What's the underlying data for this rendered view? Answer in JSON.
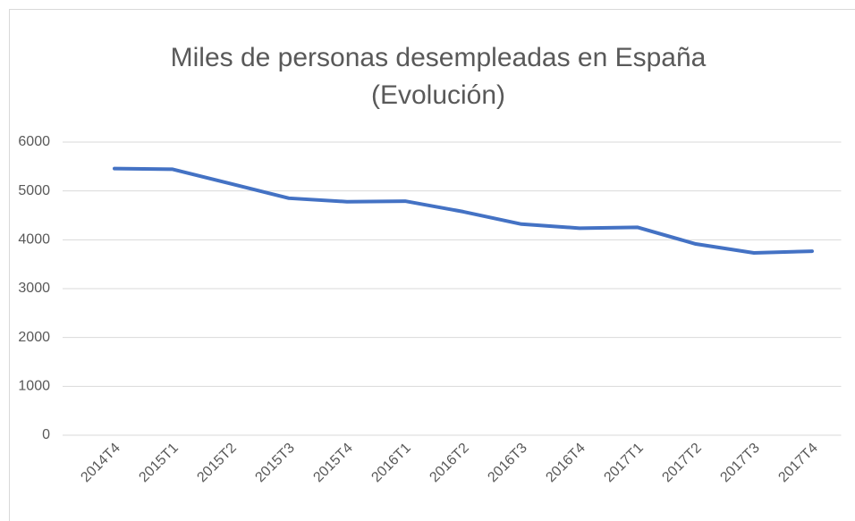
{
  "chart_data": {
    "type": "line",
    "title": [
      "Miles de personas desempleadas en España",
      "(Evolución)"
    ],
    "categories": [
      "2014T4",
      "2015T1",
      "2015T2",
      "2015T3",
      "2015T4",
      "2016T1",
      "2016T2",
      "2016T3",
      "2016T4",
      "2017T1",
      "2017T2",
      "2017T3",
      "2017T4"
    ],
    "values": [
      5458,
      5444,
      5149,
      4851,
      4780,
      4791,
      4575,
      4321,
      4238,
      4255,
      3914,
      3731,
      3766
    ],
    "color": "#4472c4",
    "ylim": [
      0,
      6000
    ],
    "yticks": [
      0,
      1000,
      2000,
      3000,
      4000,
      5000,
      6000
    ],
    "grid": true
  }
}
